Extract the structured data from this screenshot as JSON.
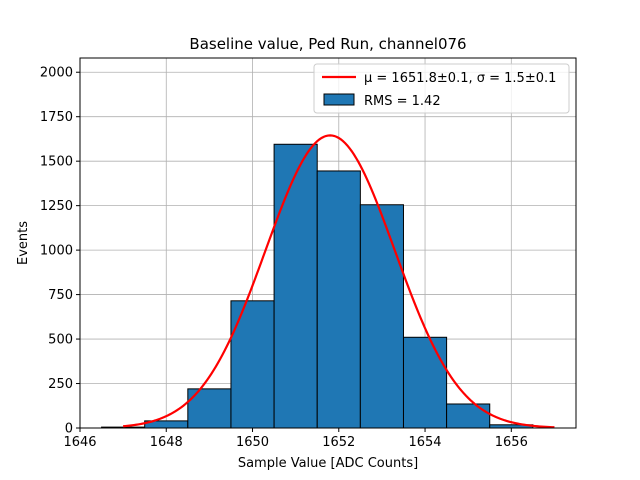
{
  "chart_data": {
    "type": "bar",
    "title": "Baseline value, Ped Run, channel076",
    "xlabel": "Sample Value [ADC Counts]",
    "ylabel": "Events",
    "xlim": [
      1646,
      1657.5
    ],
    "ylim": [
      0,
      2080
    ],
    "xticks": [
      1646,
      1648,
      1650,
      1652,
      1654,
      1656
    ],
    "yticks": [
      0,
      250,
      500,
      750,
      1000,
      1250,
      1500,
      1750,
      2000
    ],
    "grid": true,
    "legend_position": "top-right",
    "bar_color": "#1f77b4",
    "fit_color": "#ff0000",
    "bins": [
      {
        "lo": 1646.5,
        "hi": 1647.5,
        "count": 5
      },
      {
        "lo": 1647.5,
        "hi": 1648.5,
        "count": 40
      },
      {
        "lo": 1648.5,
        "hi": 1649.5,
        "count": 220
      },
      {
        "lo": 1649.5,
        "hi": 1650.5,
        "count": 715
      },
      {
        "lo": 1650.5,
        "hi": 1651.5,
        "count": 1595
      },
      {
        "lo": 1651.5,
        "hi": 1652.5,
        "count": 1445
      },
      {
        "lo": 1652.5,
        "hi": 1653.5,
        "count": 1255
      },
      {
        "lo": 1653.5,
        "hi": 1654.5,
        "count": 510
      },
      {
        "lo": 1654.5,
        "hi": 1655.5,
        "count": 135
      },
      {
        "lo": 1655.5,
        "hi": 1656.5,
        "count": 18
      }
    ],
    "fit": {
      "mu": 1651.8,
      "sigma": 1.5,
      "amplitude": 1645,
      "x_range": [
        1647,
        1657
      ]
    },
    "legend": {
      "fit_label": "μ = 1651.8±0.1, σ = 1.5±0.1",
      "hist_label": "RMS = 1.42"
    }
  }
}
